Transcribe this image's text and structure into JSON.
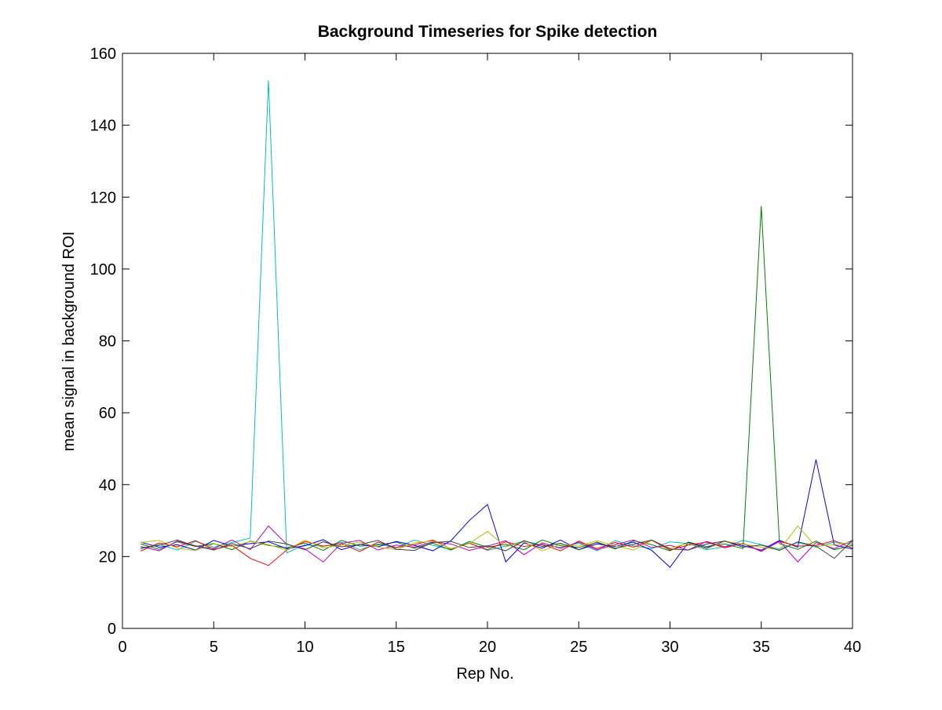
{
  "chart_data": {
    "type": "line",
    "title": "Background Timeseries for Spike detection",
    "xlabel": "Rep No.",
    "ylabel": "mean signal in background ROI",
    "xlim": [
      0,
      40
    ],
    "ylim": [
      0,
      160
    ],
    "xticks": [
      0,
      5,
      10,
      15,
      20,
      25,
      30,
      35,
      40
    ],
    "yticks": [
      0,
      20,
      40,
      60,
      80,
      100,
      120,
      140,
      160
    ],
    "grid": false,
    "legend": "none",
    "x": [
      1,
      2,
      3,
      4,
      5,
      6,
      7,
      8,
      9,
      10,
      11,
      12,
      13,
      14,
      15,
      16,
      17,
      18,
      19,
      20,
      21,
      22,
      23,
      24,
      25,
      26,
      27,
      28,
      29,
      30,
      31,
      32,
      33,
      34,
      35,
      36,
      37,
      38,
      39,
      40
    ],
    "series": [
      {
        "color": "#00bfbf",
        "values": [
          22.1,
          23.4,
          21.8,
          24.2,
          22.6,
          23.9,
          25.1,
          152.5,
          21.0,
          23.3,
          22.8,
          24.0,
          21.9,
          23.5,
          22.4,
          24.6,
          23.1,
          22.0,
          23.8,
          21.7,
          22.9,
          24.3,
          23.2,
          22.5,
          23.7,
          21.6,
          24.4,
          23.0,
          22.2,
          24.1,
          23.6,
          21.9,
          22.7,
          24.5,
          23.3,
          22.1,
          23.9,
          22.6,
          24.0,
          23.4
        ]
      },
      {
        "color": "#008000",
        "values": [
          23.5,
          22.0,
          24.1,
          22.8,
          23.6,
          21.9,
          24.3,
          23.1,
          22.4,
          23.8,
          21.7,
          24.5,
          22.9,
          23.2,
          24.0,
          22.3,
          23.7,
          21.8,
          24.2,
          22.6,
          23.4,
          21.9,
          24.6,
          23.0,
          22.5,
          23.9,
          22.1,
          24.4,
          23.3,
          21.6,
          24.0,
          22.8,
          23.5,
          22.2,
          117.5,
          23.6,
          22.0,
          24.3,
          21.9,
          23.1
        ]
      },
      {
        "color": "#0000ff",
        "values": [
          24.0,
          22.6,
          23.3,
          21.8,
          24.5,
          22.9,
          23.6,
          24.1,
          22.2,
          23.0,
          24.7,
          21.9,
          23.4,
          22.7,
          24.2,
          23.1,
          21.6,
          24.4,
          30.0,
          34.5,
          18.5,
          23.8,
          22.3,
          24.6,
          21.9,
          23.5,
          22.8,
          24.0,
          21.7,
          17.0,
          23.9,
          22.4,
          24.3,
          23.0,
          21.8,
          24.5,
          22.6,
          47.0,
          23.2,
          22.1
        ]
      },
      {
        "color": "#ff0000",
        "values": [
          21.5,
          23.8,
          22.7,
          24.4,
          22.0,
          23.1,
          19.5,
          17.5,
          21.8,
          24.2,
          22.9,
          23.6,
          21.4,
          24.0,
          22.5,
          23.3,
          24.6,
          22.1,
          23.7,
          21.9,
          24.1,
          22.8,
          23.4,
          21.6,
          24.3,
          22.2,
          23.9,
          22.6,
          24.5,
          21.8,
          23.2,
          24.0,
          22.4,
          23.7,
          21.5,
          24.2,
          22.9,
          23.1,
          24.4,
          22.3
        ]
      },
      {
        "color": "#bf00bf",
        "values": [
          22.8,
          21.6,
          24.3,
          23.0,
          22.2,
          24.6,
          21.9,
          28.5,
          23.4,
          22.1,
          18.5,
          23.7,
          24.5,
          21.8,
          23.2,
          22.6,
          24.1,
          23.5,
          21.7,
          22.9,
          24.4,
          20.5,
          23.8,
          22.3,
          24.0,
          21.9,
          23.3,
          24.6,
          22.5,
          23.1,
          21.8,
          24.2,
          22.7,
          23.6,
          21.4,
          24.3,
          18.5,
          23.9,
          22.2,
          24.5
        ]
      },
      {
        "color": "#bfbf00",
        "values": [
          23.9,
          24.5,
          22.3,
          21.7,
          23.5,
          22.8,
          24.2,
          23.3,
          21.8,
          24.6,
          22.4,
          23.1,
          24.0,
          22.6,
          21.9,
          23.8,
          24.3,
          22.2,
          23.6,
          27.0,
          22.7,
          24.1,
          21.6,
          23.4,
          22.9,
          24.4,
          23.0,
          21.8,
          24.5,
          22.3,
          23.7,
          22.1,
          24.2,
          23.5,
          22.6,
          21.9,
          28.5,
          22.8,
          23.3,
          24.0
        ]
      },
      {
        "color": "#404040",
        "values": [
          22.4,
          23.1,
          24.6,
          22.9,
          21.8,
          23.6,
          22.2,
          24.3,
          23.5,
          21.9,
          24.1,
          22.7,
          23.3,
          24.5,
          22.0,
          21.7,
          23.9,
          24.2,
          22.5,
          23.0,
          21.6,
          24.4,
          22.8,
          23.7,
          21.9,
          24.0,
          22.3,
          23.4,
          24.6,
          22.1,
          21.8,
          23.5,
          24.3,
          22.6,
          23.2,
          21.7,
          24.1,
          22.9,
          19.5,
          24.5
        ]
      }
    ]
  }
}
